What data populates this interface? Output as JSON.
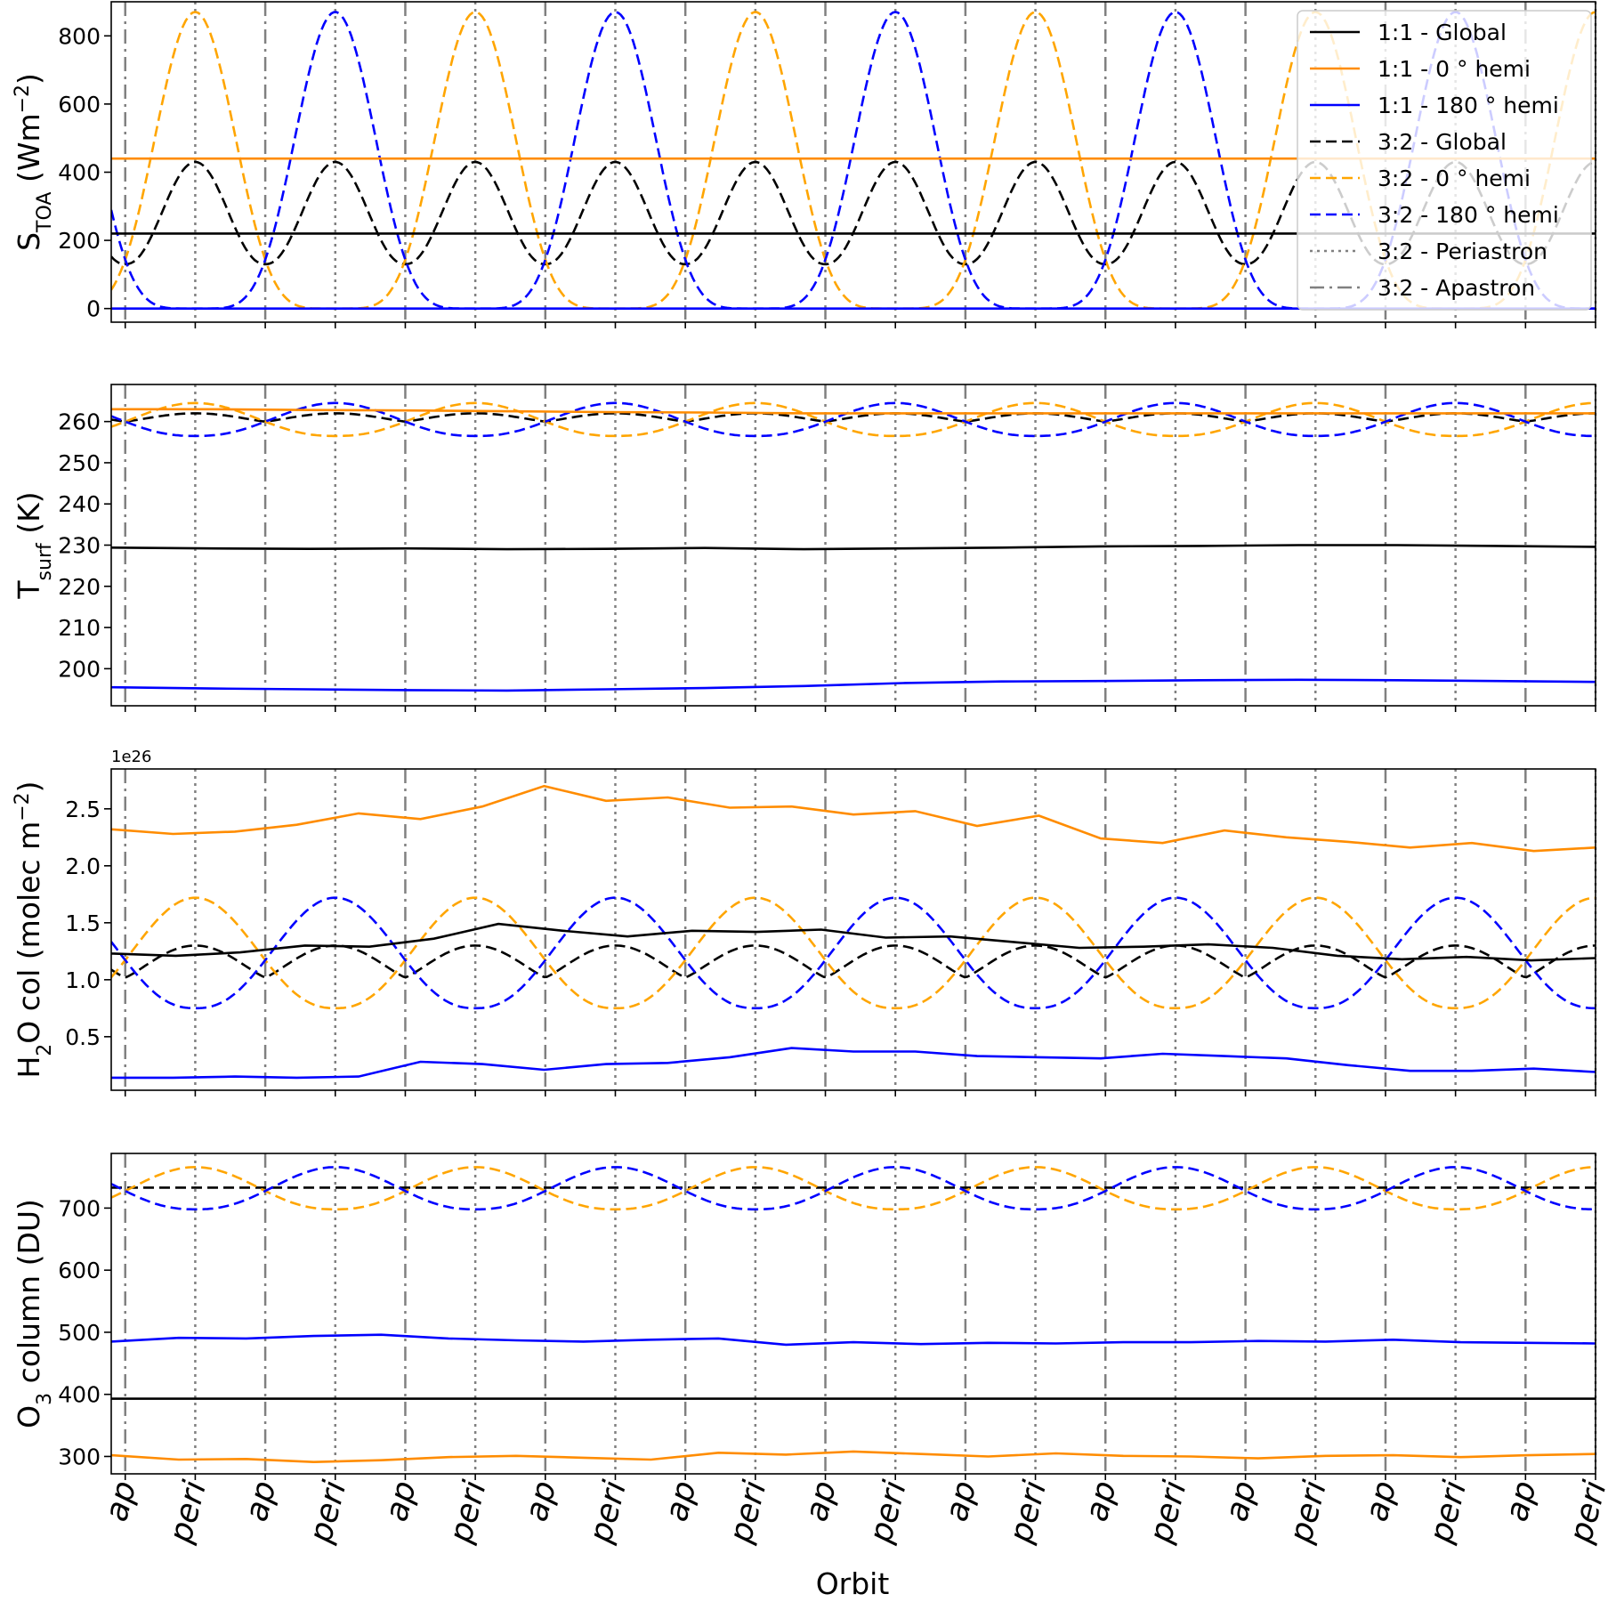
{
  "chart_data": {
    "type": "line",
    "xlabel": "Orbit",
    "x_tick_labels": [
      "ap",
      "peri",
      "ap",
      "peri",
      "ap",
      "peri",
      "ap",
      "peri",
      "ap",
      "peri",
      "ap",
      "peri",
      "ap",
      "peri",
      "ap",
      "peri",
      "ap",
      "peri",
      "ap",
      "peri",
      "ap",
      "peri"
    ],
    "xlim": [
      -0.1,
      10.5
    ],
    "grid": false,
    "colors": {
      "global": "#000000",
      "hemi0": "#ff8c00",
      "hemi0_dashed": "#ffa500",
      "hemi180": "#0000ff",
      "marker": "#808080"
    },
    "legend": {
      "placement": "top-right",
      "entries": [
        {
          "label": "1:1 - Global",
          "key": "g11",
          "style": "solid",
          "color": "#000000"
        },
        {
          "label": "1:1 - 0$^\\circ$ hemi",
          "display": "1:1 - 0 ° hemi",
          "key": "h0_11",
          "style": "solid",
          "color": "#ff8c00"
        },
        {
          "label": "1:1 - 180$^\\circ$ hemi",
          "display": "1:1 - 180 ° hemi",
          "key": "h180_11",
          "style": "solid",
          "color": "#0000ff"
        },
        {
          "label": "3:2 - Global",
          "key": "g32",
          "style": "dashed",
          "color": "#000000"
        },
        {
          "label": "3:2 - 0$^\\circ$ hemi",
          "display": "3:2 - 0 ° hemi",
          "key": "h0_32",
          "style": "dashed",
          "color": "#ffa500"
        },
        {
          "label": "3:2 - 180$^\\circ$ hemi",
          "display": "3:2 - 180 ° hemi",
          "key": "h180_32",
          "style": "dashed",
          "color": "#0000ff"
        },
        {
          "label": "3:2 - Periastron",
          "key": "peri",
          "style": "dotted",
          "color": "#808080"
        },
        {
          "label": "3:2 - Apastron",
          "key": "ap",
          "style": "dashdot",
          "color": "#808080"
        }
      ]
    },
    "panels": [
      {
        "ylabel": "S_TOA (Wm^-2)",
        "ylabel_main": "S",
        "ylabel_sub": "TOA",
        "ylabel_tail": " (Wm",
        "ylabel_sup": "−2",
        "ylabel_end": ")",
        "ylim": [
          -40,
          900
        ],
        "yticks": [
          0,
          200,
          400,
          600,
          800
        ],
        "ytick_labels": [
          "0",
          "200",
          "400",
          "600",
          "800"
        ],
        "constant_lines": {
          "g11": 220,
          "h0_11": 440,
          "h180_11": 0
        },
        "oscillating": {
          "g32": {
            "min": 130,
            "max": 430,
            "phase": "peri"
          },
          "h0_32": {
            "min": 0,
            "max": 870,
            "phase": "even_peri"
          },
          "h180_32": {
            "min": 0,
            "max": 870,
            "phase": "odd_peri"
          }
        }
      },
      {
        "ylabel": "T_surf (K)",
        "ylabel_main": "T",
        "ylabel_sub": "surf",
        "ylabel_tail": " (K)",
        "ylabel_sup": "",
        "ylabel_end": "",
        "ylim": [
          191,
          269
        ],
        "yticks": [
          200,
          210,
          220,
          230,
          240,
          250,
          260
        ],
        "ytick_labels": [
          "200",
          "210",
          "220",
          "230",
          "240",
          "250",
          "260"
        ],
        "series": {
          "g11": [
            229.4,
            229.2,
            229.1,
            229.2,
            229.0,
            229.1,
            229.3,
            229.0,
            229.2,
            229.4,
            229.7,
            229.8,
            230.0,
            230.0,
            229.8,
            229.6
          ],
          "h0_11": [
            263.0,
            263.0,
            262.8,
            262.7,
            262.5,
            262.3,
            262.2,
            262.0,
            262.0,
            262.0,
            262.0,
            262.0,
            262.0,
            262.0,
            262.0,
            262.0
          ],
          "h180_11": [
            195.5,
            195.2,
            195.0,
            194.8,
            194.7,
            195.0,
            195.3,
            195.8,
            196.5,
            196.9,
            197.0,
            197.2,
            197.3,
            197.2,
            197.0,
            196.8
          ]
        },
        "oscillating": {
          "g32": {
            "min": 260.0,
            "max": 262.0,
            "phase": "peri"
          },
          "h0_32": {
            "min": 256.5,
            "max": 264.5,
            "phase": "even_peri"
          },
          "h180_32": {
            "min": 256.5,
            "max": 264.5,
            "phase": "odd_peri"
          }
        }
      },
      {
        "ylabel": "H2O col (molec m^-2)",
        "ylabel_main": "H",
        "ylabel_sub": "2",
        "ylabel_tail": "O col (molec m",
        "ylabel_sup": "−2",
        "ylabel_end": ")",
        "scale_label": "1e26",
        "ylim": [
          0.03,
          2.85
        ],
        "yticks": [
          0.5,
          1.0,
          1.5,
          2.0,
          2.5
        ],
        "ytick_labels": [
          "0.5",
          "1.0",
          "1.5",
          "2.0",
          "2.5"
        ],
        "series": {
          "g11": [
            1.23,
            1.21,
            1.24,
            1.3,
            1.29,
            1.36,
            1.49,
            1.43,
            1.38,
            1.43,
            1.42,
            1.44,
            1.37,
            1.38,
            1.33,
            1.28,
            1.29,
            1.31,
            1.28,
            1.21,
            1.18,
            1.2,
            1.17,
            1.19
          ],
          "h0_11": [
            2.32,
            2.28,
            2.3,
            2.36,
            2.46,
            2.41,
            2.52,
            2.7,
            2.57,
            2.6,
            2.51,
            2.52,
            2.45,
            2.48,
            2.35,
            2.44,
            2.24,
            2.2,
            2.31,
            2.25,
            2.21,
            2.16,
            2.2,
            2.13,
            2.16
          ],
          "h180_11": [
            0.14,
            0.14,
            0.15,
            0.14,
            0.15,
            0.28,
            0.26,
            0.21,
            0.26,
            0.27,
            0.32,
            0.4,
            0.37,
            0.37,
            0.33,
            0.32,
            0.31,
            0.35,
            0.33,
            0.31,
            0.25,
            0.2,
            0.2,
            0.22,
            0.19
          ]
        },
        "oscillating": {
          "g32": {
            "min": 1.02,
            "max": 1.3,
            "phase": "peri"
          },
          "h0_32": {
            "min": 0.75,
            "max": 1.72,
            "phase": "even_peri"
          },
          "h180_32": {
            "min": 0.75,
            "max": 1.72,
            "phase": "odd_peri"
          }
        }
      },
      {
        "ylabel": "O3 column (DU)",
        "ylabel_main": "O",
        "ylabel_sub": "3",
        "ylabel_tail": " column (DU)",
        "ylabel_sup": "",
        "ylabel_end": "",
        "ylim": [
          272,
          788
        ],
        "yticks": [
          300,
          400,
          500,
          600,
          700
        ],
        "ytick_labels": [
          "300",
          "400",
          "500",
          "600",
          "700"
        ],
        "series": {
          "g11": [
            393,
            393,
            393,
            393,
            393,
            393,
            393,
            393,
            393,
            393
          ],
          "h0_11": [
            302,
            295,
            296,
            291,
            294,
            299,
            301,
            298,
            295,
            306,
            303,
            308,
            304,
            300,
            305,
            301,
            300,
            297,
            301,
            302,
            299,
            302,
            304
          ],
          "h180_11": [
            485,
            491,
            490,
            494,
            496,
            490,
            487,
            485,
            488,
            490,
            480,
            484,
            481,
            483,
            482,
            484,
            484,
            486,
            485,
            488,
            484,
            483,
            482
          ]
        },
        "oscillating": {
          "g32": {
            "min": 733,
            "max": 733,
            "phase": "peri"
          },
          "h0_32": {
            "min": 698,
            "max": 766,
            "phase": "even_peri"
          },
          "h180_32": {
            "min": 698,
            "max": 766,
            "phase": "odd_peri"
          }
        }
      }
    ]
  }
}
